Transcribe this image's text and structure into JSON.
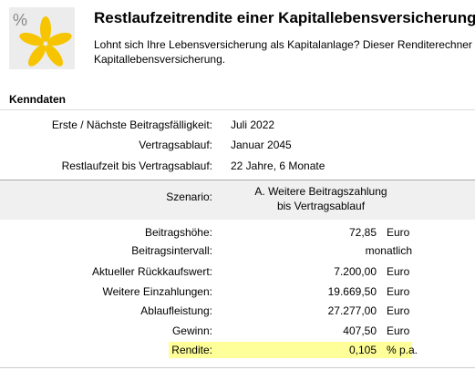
{
  "header": {
    "icon_text": "%",
    "title": "Restlaufzeitrendite einer Kapitallebensversicherung",
    "description": [
      "Lohnt sich Ihre Lebensversicherung als Kapitalanlage? Dieser Renditerechner",
      "Kapitallebensversicherung."
    ]
  },
  "section": "Kenndaten",
  "key_data": [
    {
      "label": "Erste / Nächste Beitragsfälligkeit:",
      "value": "Juli 2022"
    },
    {
      "label": "Vertragsablauf:",
      "value": "Januar 2045"
    },
    {
      "label": "Restlaufzeit bis Vertragsablauf:",
      "value": "22 Jahre, 6 Monate"
    }
  ],
  "scenario": {
    "label": "Szenario:",
    "name": [
      "A. Weitere Beitragszahlung",
      "bis Vertragsablauf"
    ]
  },
  "results": [
    {
      "label": "Beitragshöhe:",
      "value": "72,85",
      "unit": "Euro"
    },
    {
      "label": "Beitragsintervall:",
      "value": "monatlich"
    },
    {
      "label": "Aktueller Rückkaufswert:",
      "value": "7.200,00",
      "unit": "Euro"
    },
    {
      "label": "Weitere Einzahlungen:",
      "value": "19.669,50",
      "unit": "Euro"
    },
    {
      "label": "Ablaufleistung:",
      "value": "27.277,00",
      "unit": "Euro"
    },
    {
      "label": "Gewinn:",
      "value": "407,50",
      "unit": "Euro"
    },
    {
      "label": "Rendite:",
      "value": "0,105",
      "unit": "% p.a."
    }
  ]
}
